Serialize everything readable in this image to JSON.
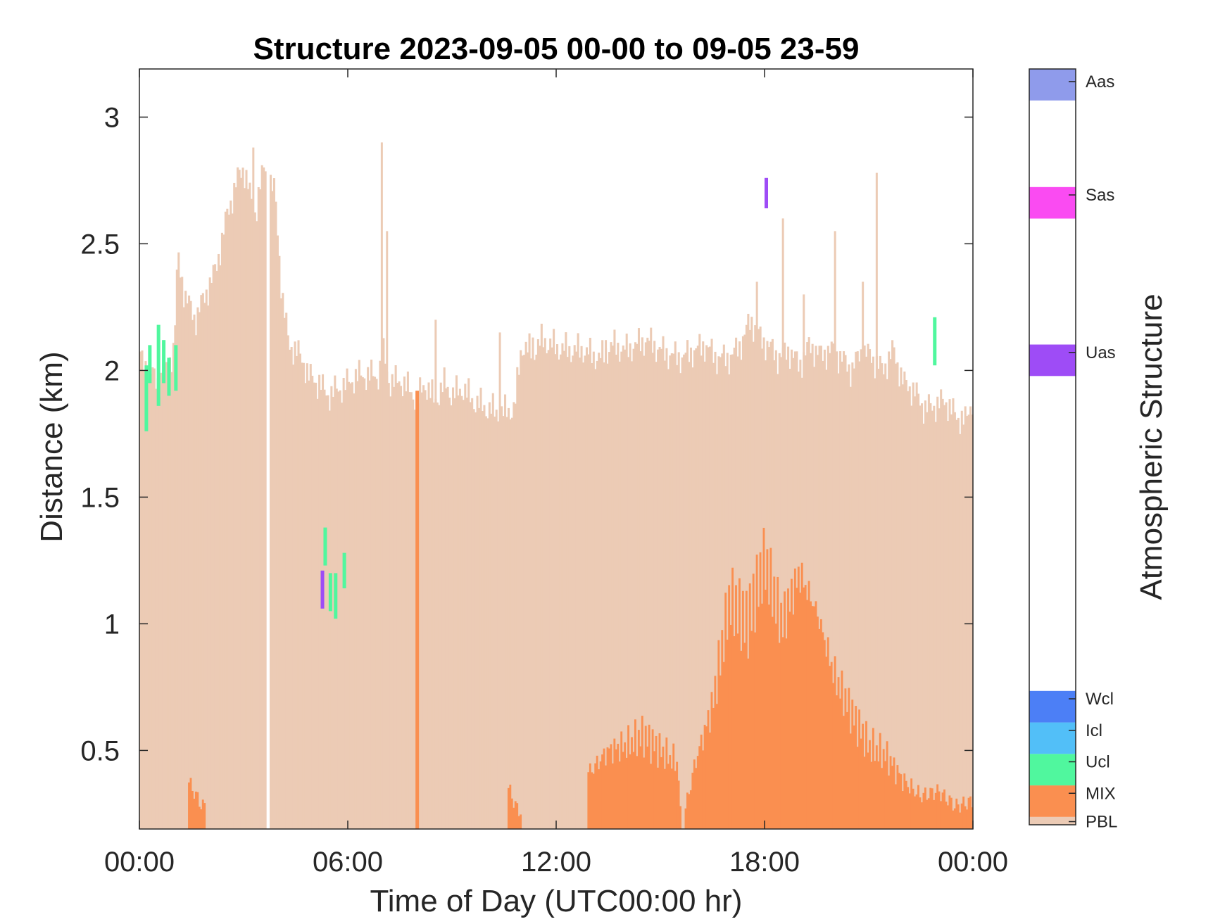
{
  "chart_data": {
    "type": "heatmap",
    "title": "Structure 2023-09-05 00-00 to 09-05 23-59",
    "xlabel": "Time of Day (UTC00:00 hr)",
    "ylabel": "Distance (km)",
    "xlim": [
      0,
      24
    ],
    "ylim": [
      0.19,
      3.19
    ],
    "xticks": [
      0,
      6,
      12,
      18,
      24
    ],
    "xtick_labels": [
      "00:00",
      "06:00",
      "12:00",
      "18:00",
      "00:00"
    ],
    "yticks": [
      0.5,
      1,
      1.5,
      2,
      2.5,
      3
    ],
    "ytick_labels": [
      "0.5",
      "1",
      "1.5",
      "2",
      "2.5",
      "3"
    ],
    "colorbar": {
      "label": "Atmospheric Structure",
      "categories": [
        {
          "name": "PBL",
          "color": "#ECCBB5"
        },
        {
          "name": "MIX",
          "color": "#FA8F50"
        },
        {
          "name": "Ucl",
          "color": "#50F79E"
        },
        {
          "name": "Icl",
          "color": "#52BFF8"
        },
        {
          "name": "Wcl",
          "color": "#4C7FF6"
        },
        {
          "name": "Uas",
          "color": "#9E4CF6"
        },
        {
          "name": "Sas",
          "color": "#FA4BF2"
        },
        {
          "name": "Aas",
          "color": "#8F9BEB"
        }
      ]
    },
    "pbl_top_profile": {
      "time_hr": [
        0,
        0.3,
        0.5,
        0.8,
        1.0,
        1.1,
        1.3,
        1.6,
        1.9,
        2.2,
        2.5,
        2.8,
        3.0,
        3.1,
        3.3,
        3.5,
        3.66,
        3.75,
        3.9,
        4.1,
        4.3,
        4.5,
        4.7,
        4.9,
        5.0,
        5.1,
        5.2,
        5.3,
        5.5,
        5.6,
        5.8,
        6.0,
        6.3,
        6.6,
        6.9,
        7.0,
        7.2,
        7.5,
        7.8,
        8.0,
        8.2,
        8.5,
        8.8,
        9.0,
        9.3,
        9.6,
        10.0,
        10.4,
        10.8,
        11.0,
        11.3,
        11.6,
        12.0,
        12.4,
        12.8,
        13.0,
        13.3,
        13.6,
        14.0,
        14.3,
        14.6,
        15.0,
        15.3,
        15.6,
        16.0,
        16.3,
        16.6,
        17.0,
        17.3,
        17.6,
        17.9,
        18.1,
        18.4,
        18.7,
        19.0,
        19.3,
        19.6,
        19.9,
        20.2,
        20.5,
        20.8,
        21.1,
        21.4,
        21.7,
        22.0,
        22.3,
        22.6,
        22.9,
        23.2,
        23.5,
        23.8,
        24.0
      ],
      "top_km": [
        2.05,
        2.0,
        1.95,
        2.0,
        2.1,
        2.45,
        2.3,
        2.2,
        2.3,
        2.4,
        2.6,
        2.75,
        2.8,
        2.75,
        2.6,
        2.75,
        2.82,
        2.75,
        2.7,
        2.3,
        2.1,
        2.08,
        2.04,
        1.97,
        1.97,
        1.95,
        1.95,
        1.92,
        1.9,
        1.92,
        1.93,
        1.95,
        1.98,
        1.98,
        1.98,
        2.08,
        1.95,
        1.96,
        1.92,
        1.88,
        1.95,
        1.88,
        1.95,
        1.9,
        1.93,
        1.88,
        1.85,
        1.83,
        1.85,
        2.1,
        2.07,
        2.12,
        2.09,
        2.08,
        2.08,
        2.06,
        2.05,
        2.1,
        2.08,
        2.1,
        2.12,
        2.08,
        2.06,
        2.05,
        2.08,
        2.1,
        2.05,
        2.05,
        2.1,
        2.2,
        2.12,
        2.1,
        2.05,
        2.08,
        2.02,
        2.1,
        2.06,
        2.08,
        2.05,
        2.0,
        2.08,
        2.05,
        2.0,
        2.08,
        1.95,
        1.92,
        1.85,
        1.86,
        1.88,
        1.82,
        1.8,
        1.9
      ],
      "spikes": [
        {
          "t": 3.25,
          "top": 2.88
        },
        {
          "t": 6.95,
          "top": 2.9
        },
        {
          "t": 7.1,
          "top": 2.55
        },
        {
          "t": 8.5,
          "top": 2.2
        },
        {
          "t": 10.35,
          "top": 2.15
        },
        {
          "t": 11.3,
          "top": 2.13
        },
        {
          "t": 13.0,
          "top": 1.85
        },
        {
          "t": 13.4,
          "top": 2.12
        },
        {
          "t": 17.75,
          "top": 2.35
        },
        {
          "t": 18.5,
          "top": 2.6
        },
        {
          "t": 19.1,
          "top": 2.3
        },
        {
          "t": 20.0,
          "top": 2.55
        },
        {
          "t": 20.8,
          "top": 2.35
        },
        {
          "t": 21.2,
          "top": 2.78
        }
      ],
      "gaps_hr": [
        [
          3.67,
          3.73
        ]
      ]
    },
    "mix_profile": {
      "time_hr": [
        1.4,
        1.8,
        10.6,
        10.9,
        13.0,
        13.5,
        14.0,
        14.5,
        15.0,
        15.5,
        15.6,
        16.0,
        16.5,
        17.0,
        17.5,
        18.0,
        18.5,
        19.0,
        19.5,
        20.0,
        20.5,
        21.0,
        21.5,
        22.0,
        22.5,
        23.0,
        23.5,
        24.0
      ],
      "top_km": [
        0.38,
        0.28,
        0.36,
        0.26,
        0.42,
        0.5,
        0.52,
        0.56,
        0.5,
        0.45,
        0.19,
        0.45,
        0.68,
        1.1,
        1.0,
        1.25,
        1.0,
        1.2,
        1.05,
        0.8,
        0.65,
        0.52,
        0.48,
        0.38,
        0.32,
        0.34,
        0.28,
        0.3
      ],
      "column_hr": [
        7.95,
        8.05
      ],
      "column_top_km": 1.92
    },
    "cloud_segments": [
      {
        "type": "Ucl",
        "t": 0.15,
        "bottom": 1.76,
        "top": 2.02
      },
      {
        "type": "Ucl",
        "t": 0.25,
        "bottom": 1.95,
        "top": 2.1
      },
      {
        "type": "Ucl",
        "t": 0.5,
        "bottom": 1.86,
        "top": 2.18
      },
      {
        "type": "Ucl",
        "t": 0.65,
        "bottom": 1.95,
        "top": 2.12
      },
      {
        "type": "Ucl",
        "t": 0.8,
        "bottom": 1.9,
        "top": 2.05
      },
      {
        "type": "Ucl",
        "t": 1.0,
        "bottom": 1.92,
        "top": 2.1
      },
      {
        "type": "Ucl",
        "t": 5.3,
        "bottom": 1.23,
        "top": 1.38
      },
      {
        "type": "Ucl",
        "t": 5.45,
        "bottom": 1.05,
        "top": 1.2
      },
      {
        "type": "Ucl",
        "t": 5.6,
        "bottom": 1.02,
        "top": 1.2
      },
      {
        "type": "Ucl",
        "t": 5.85,
        "bottom": 1.14,
        "top": 1.28
      },
      {
        "type": "Uas",
        "t": 5.22,
        "bottom": 1.06,
        "top": 1.21
      },
      {
        "type": "Uas",
        "t": 18.0,
        "bottom": 2.64,
        "top": 2.76
      },
      {
        "type": "Ucl",
        "t": 22.85,
        "bottom": 2.02,
        "top": 2.21
      }
    ]
  }
}
